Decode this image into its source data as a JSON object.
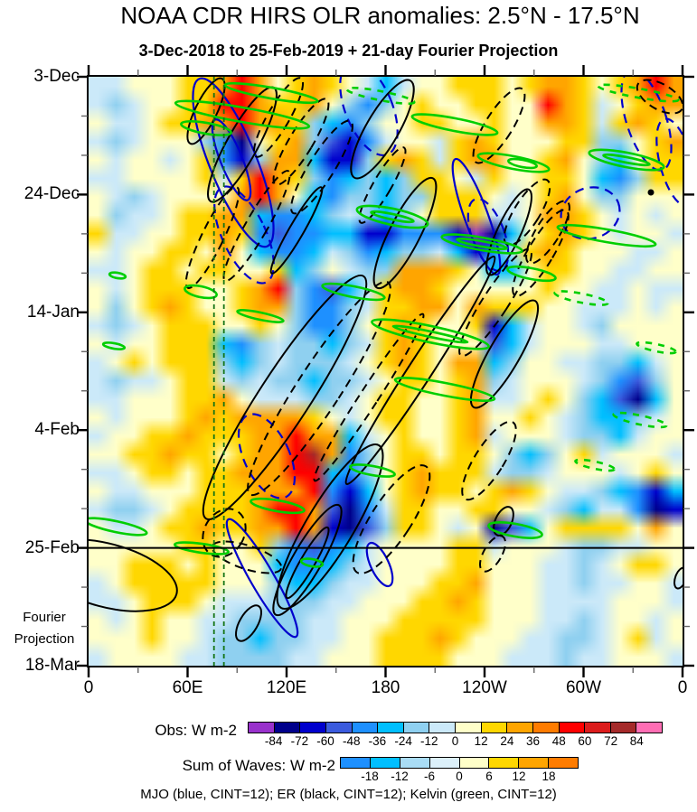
{
  "title": "NOAA CDR HIRS OLR anomalies: 2.5°N - 17.5°N",
  "subtitle": "3-Dec-2018 to 25-Feb-2019 + 21-day Fourier Projection",
  "side_label": {
    "line1": "Fourier",
    "line2": "Projection"
  },
  "y_axis": {
    "ticks": [
      {
        "label": "3-Dec",
        "day": 0
      },
      {
        "label": "24-Dec",
        "day": 21
      },
      {
        "label": "14-Jan",
        "day": 42
      },
      {
        "label": "4-Feb",
        "day": 63
      },
      {
        "label": "25-Feb",
        "day": 84
      },
      {
        "label": "18-Mar",
        "day": 105
      }
    ],
    "minor_step_days": 7,
    "total_days": 105
  },
  "x_axis": {
    "ticks": [
      {
        "label": "0",
        "lon": 0
      },
      {
        "label": "60E",
        "lon": 60
      },
      {
        "label": "120E",
        "lon": 120
      },
      {
        "label": "180",
        "lon": 180
      },
      {
        "label": "120W",
        "lon": 240
      },
      {
        "label": "60W",
        "lon": 300
      },
      {
        "label": "0",
        "lon": 360
      }
    ],
    "minor_step_deg": 30,
    "range_deg": [
      0,
      360
    ]
  },
  "legend": {
    "obs": {
      "label": "Obs: W m-2",
      "tick_values": [
        -84,
        -72,
        -60,
        -48,
        -36,
        -24,
        -12,
        0,
        12,
        24,
        36,
        48,
        60,
        72,
        84
      ],
      "colors": [
        "#9932CC",
        "#00008B",
        "#0000CD",
        "#3B5BDE",
        "#1E90FF",
        "#00BFFF",
        "#8FD0F0",
        "#CBE9F9",
        "#FFFFC9",
        "#FFD700",
        "#FFA500",
        "#FF7C00",
        "#FF0000",
        "#DC1C1C",
        "#A52A2A",
        "#FF6EB4"
      ]
    },
    "waves": {
      "label": "Sum of Waves: W m-2",
      "tick_values": [
        -18,
        -12,
        -6,
        0,
        6,
        12,
        18
      ],
      "colors": [
        "#1E90FF",
        "#00BFFF",
        "#A9DCF5",
        "#DCF0FA",
        "#FFFFC9",
        "#FFD700",
        "#FFA500",
        "#FF7C00"
      ]
    },
    "footnote": "MJO (blue, CINT=12); ER (black, CINT=12); Kelvin (green, CINT=12)"
  },
  "chart_data": {
    "type": "heatmap",
    "title": "NOAA CDR HIRS OLR anomalies: 2.5°N - 17.5°N",
    "x_label_unit": "longitude (deg, 0-360 eastward)",
    "y_label_unit": "time (3-Dec-2018 to 18-Mar-2019, downward; 25-Feb onward is Fourier projection)",
    "value_unit": "W m-2",
    "value_encoding": "each grid char is a hex color index 0-15; anomaly value approx ((index-8)*12) to ((index-7)*12) W m-2",
    "obs_period": {
      "start": "3-Dec-2018",
      "end": "25-Feb-2019"
    },
    "projection_days": 21,
    "grid_cols": 33,
    "grid_rows": 32,
    "palette": [
      "#9932CC",
      "#00008B",
      "#0000CD",
      "#3B5BDE",
      "#1E90FF",
      "#00BFFF",
      "#8FD0F0",
      "#CBE9F9",
      "#FFFFC9",
      "#FFD700",
      "#FFA500",
      "#FF7C00",
      "#FF0000",
      "#DC1C1C",
      "#A52A2A",
      "#FF6EB4"
    ],
    "cells": [
      "7788899aca89a987578899989aa989aca",
      "7678899cca99a864689889988ca9789aa",
      "877899aacaa96546889988988aa979a98",
      "76788864189a632478879a9888996689a",
      "8788789426aa52269a979aa889a865899",
      "778888979ca9645656998798899854699",
      "87678888aca854665669998789a866888",
      "8677899aa5445676568999778aa987878",
      "9778899a943445522444201589a987887",
      "8788998a85445764566752479a9888778",
      "77899899889568766aaa9855899887788",
      "878999889ac643579aa98888898877877",
      "8689a9889aa6446799aa8a99988777878",
      "76789998898644689a988925788768888",
      "87889995467665679a988835788877888",
      "78989996567666789a98aa56887766578",
      "767789976766566789989a67888764368",
      "7788899a8777667899889a77898653158",
      "878889a9aaaa987899889a88987655678",
      "78899a999aacaa5789889a78887665788",
      "8899a9989aacea4689989986568978887",
      "77899899aaacc54689a99976678887898",
      "877888999aaac42589a9989a987765425",
      "766789999acca31479988998876577412",
      "877899a99aaca213699878135899998a8",
      "888889988964345788889978887667788",
      "889998988854456788889988877678998",
      "789999988865567788899a88877677887",
      "77899987776667788899a988877778887",
      "878988776666778889999988877678878",
      "8889887665667788999a9888776678978",
      "788887766667788899998887776778887"
    ],
    "overlays": {
      "description": "wave-filtered anomaly contours, CINT=12 W m-2; solid=negative/primary, dashed=opposite phase",
      "mjo_color": "#0000CC",
      "er_color": "#000000",
      "kelvin_color": "#00CE00",
      "ref_lines": {
        "horizontal": {
          "day": 84,
          "label": "end of observations (25-Feb)",
          "color": "#000000"
        },
        "verticals": [
          {
            "lon": 76
          },
          {
            "lon": 82
          }
        ],
        "vertical_color": "#157515"
      },
      "contours": [
        [
          "m",
          "s",
          160,
          95,
          26,
          100,
          -22
        ],
        [
          "m",
          "s",
          158,
          92,
          12,
          48,
          -22
        ],
        [
          "m",
          "s",
          429,
          155,
          13,
          68,
          -20
        ],
        [
          "m",
          "s",
          192,
          555,
          13,
          75,
          -30
        ],
        [
          "m",
          "s",
          322,
          540,
          10,
          26,
          -25
        ],
        [
          "m",
          "d",
          310,
          35,
          26,
          55,
          -22
        ],
        [
          "m",
          "d",
          617,
          48,
          22,
          58,
          -18
        ],
        [
          "m",
          "d",
          650,
          95,
          18,
          50,
          -15
        ],
        [
          "m",
          "d",
          172,
          175,
          24,
          58,
          -25
        ],
        [
          "m",
          "d",
          197,
          420,
          25,
          50,
          -25
        ],
        [
          "m",
          "d",
          555,
          151,
          33,
          28,
          -20
        ],
        [
          "m",
          "d",
          442,
          175,
          18,
          42,
          -20
        ],
        [
          "e",
          "s",
          170,
          75,
          17,
          72,
          29
        ],
        [
          "e",
          "s",
          130,
          38,
          12,
          40,
          26
        ],
        [
          "e",
          "s",
          325,
          58,
          18,
          62,
          30
        ],
        [
          "e",
          "s",
          350,
          173,
          17,
          68,
          27
        ],
        [
          "e",
          "s",
          465,
          172,
          13,
          52,
          25
        ],
        [
          "e",
          "s",
          230,
          170,
          8,
          55,
          30
        ],
        [
          "e",
          "s",
          217,
          355,
          28,
          160,
          33
        ],
        [
          "e",
          "s",
          367,
          325,
          13,
          150,
          33
        ],
        [
          "e",
          "s",
          460,
          307,
          17,
          68,
          30
        ],
        [
          "e",
          "s",
          267,
          498,
          26,
          105,
          31
        ],
        [
          "e",
          "s",
          242,
          535,
          16,
          70,
          30
        ],
        [
          "e",
          "s",
          242,
          538,
          8,
          45,
          30
        ],
        [
          "e",
          "s",
          459,
          492,
          9,
          17,
          25
        ],
        [
          "e",
          "s",
          177,
          605,
          10,
          22,
          30
        ],
        [
          "e",
          "s",
          20,
          552,
          80,
          35,
          15
        ],
        [
          "e",
          "s",
          655,
          555,
          6,
          12,
          20
        ],
        [
          "e",
          "dot",
          622,
          128,
          2.5,
          2.5,
          0
        ],
        [
          "e",
          "d",
          210,
          45,
          12,
          50,
          30
        ],
        [
          "e",
          "d",
          235,
          72,
          13,
          55,
          31
        ],
        [
          "e",
          "d",
          258,
          100,
          14,
          60,
          32
        ],
        [
          "e",
          "d",
          137,
          178,
          12,
          62,
          26
        ],
        [
          "e",
          "d",
          186,
          165,
          12,
          70,
          30
        ],
        [
          "e",
          "d",
          325,
          120,
          10,
          48,
          30
        ],
        [
          "e",
          "d",
          454,
          54,
          15,
          48,
          32
        ],
        [
          "e",
          "d",
          485,
          150,
          14,
          42,
          32
        ],
        [
          "e",
          "d",
          508,
          172,
          13,
          40,
          32
        ],
        [
          "e",
          "d",
          500,
          195,
          14,
          55,
          31
        ],
        [
          "e",
          "d",
          255,
          345,
          24,
          140,
          33
        ],
        [
          "e",
          "d",
          310,
          355,
          10,
          110,
          33
        ],
        [
          "e",
          "d",
          450,
          250,
          14,
          70,
          33
        ],
        [
          "e",
          "d",
          443,
          425,
          16,
          50,
          32
        ],
        [
          "e",
          "d",
          335,
          490,
          22,
          70,
          33
        ],
        [
          "e",
          "d",
          175,
          532,
          40,
          13,
          18
        ],
        [
          "e",
          "d",
          632,
          22,
          28,
          14,
          30
        ],
        [
          "e",
          "d",
          447,
          528,
          10,
          22,
          30
        ],
        [
          "e",
          "d",
          150,
          505,
          22,
          28,
          30
        ],
        [
          "k",
          "s",
          170,
          42,
          75,
          8,
          10
        ],
        [
          "k",
          "s",
          130,
          57,
          28,
          6,
          10
        ],
        [
          "k",
          "s",
          202,
          18,
          52,
          6,
          10
        ],
        [
          "k",
          "s",
          405,
          53,
          48,
          7,
          11
        ],
        [
          "k",
          "s",
          470,
          95,
          40,
          7,
          11
        ],
        [
          "k",
          "s",
          336,
          155,
          40,
          9,
          12
        ],
        [
          "k",
          "s",
          336,
          155,
          24,
          3,
          12
        ],
        [
          "k",
          "s",
          435,
          185,
          45,
          7,
          10
        ],
        [
          "k",
          "s",
          435,
          185,
          28,
          3,
          10
        ],
        [
          "k",
          "s",
          595,
          92,
          42,
          8,
          11
        ],
        [
          "k",
          "s",
          595,
          92,
          26,
          3,
          11
        ],
        [
          "k",
          "s",
          480,
          96,
          16,
          4,
          11
        ],
        [
          "k",
          "s",
          293,
          238,
          35,
          6,
          11
        ],
        [
          "k",
          "s",
          190,
          265,
          26,
          4,
          12
        ],
        [
          "k",
          "s",
          124,
          238,
          18,
          6,
          12
        ],
        [
          "k",
          "s",
          32,
          220,
          9,
          3,
          10
        ],
        [
          "k",
          "s",
          573,
          176,
          55,
          7,
          10
        ],
        [
          "k",
          "s",
          490,
          218,
          27,
          6,
          11
        ],
        [
          "k",
          "s",
          378,
          285,
          66,
          9,
          12
        ],
        [
          "k",
          "s",
          378,
          285,
          42,
          3,
          12
        ],
        [
          "k",
          "s",
          394,
          346,
          56,
          7,
          11
        ],
        [
          "k",
          "s",
          209,
          475,
          30,
          6,
          10
        ],
        [
          "k",
          "s",
          125,
          522,
          30,
          5,
          8
        ],
        [
          "k",
          "s",
          472,
          502,
          30,
          7,
          10
        ],
        [
          "k",
          "s",
          314,
          436,
          25,
          5,
          10
        ],
        [
          "k",
          "s",
          247,
          538,
          12,
          4,
          10
        ],
        [
          "k",
          "s",
          30,
          498,
          35,
          6,
          12
        ],
        [
          "k",
          "s",
          28,
          298,
          12,
          3,
          10
        ],
        [
          "k",
          "d",
          323,
          21,
          38,
          5,
          11
        ],
        [
          "k",
          "d",
          608,
          18,
          45,
          5,
          10
        ],
        [
          "k",
          "d",
          545,
          245,
          30,
          5,
          11
        ],
        [
          "k",
          "d",
          610,
          380,
          30,
          5,
          12
        ],
        [
          "k",
          "d",
          628,
          300,
          22,
          4,
          12
        ],
        [
          "k",
          "d",
          560,
          430,
          22,
          4,
          12
        ]
      ]
    }
  }
}
